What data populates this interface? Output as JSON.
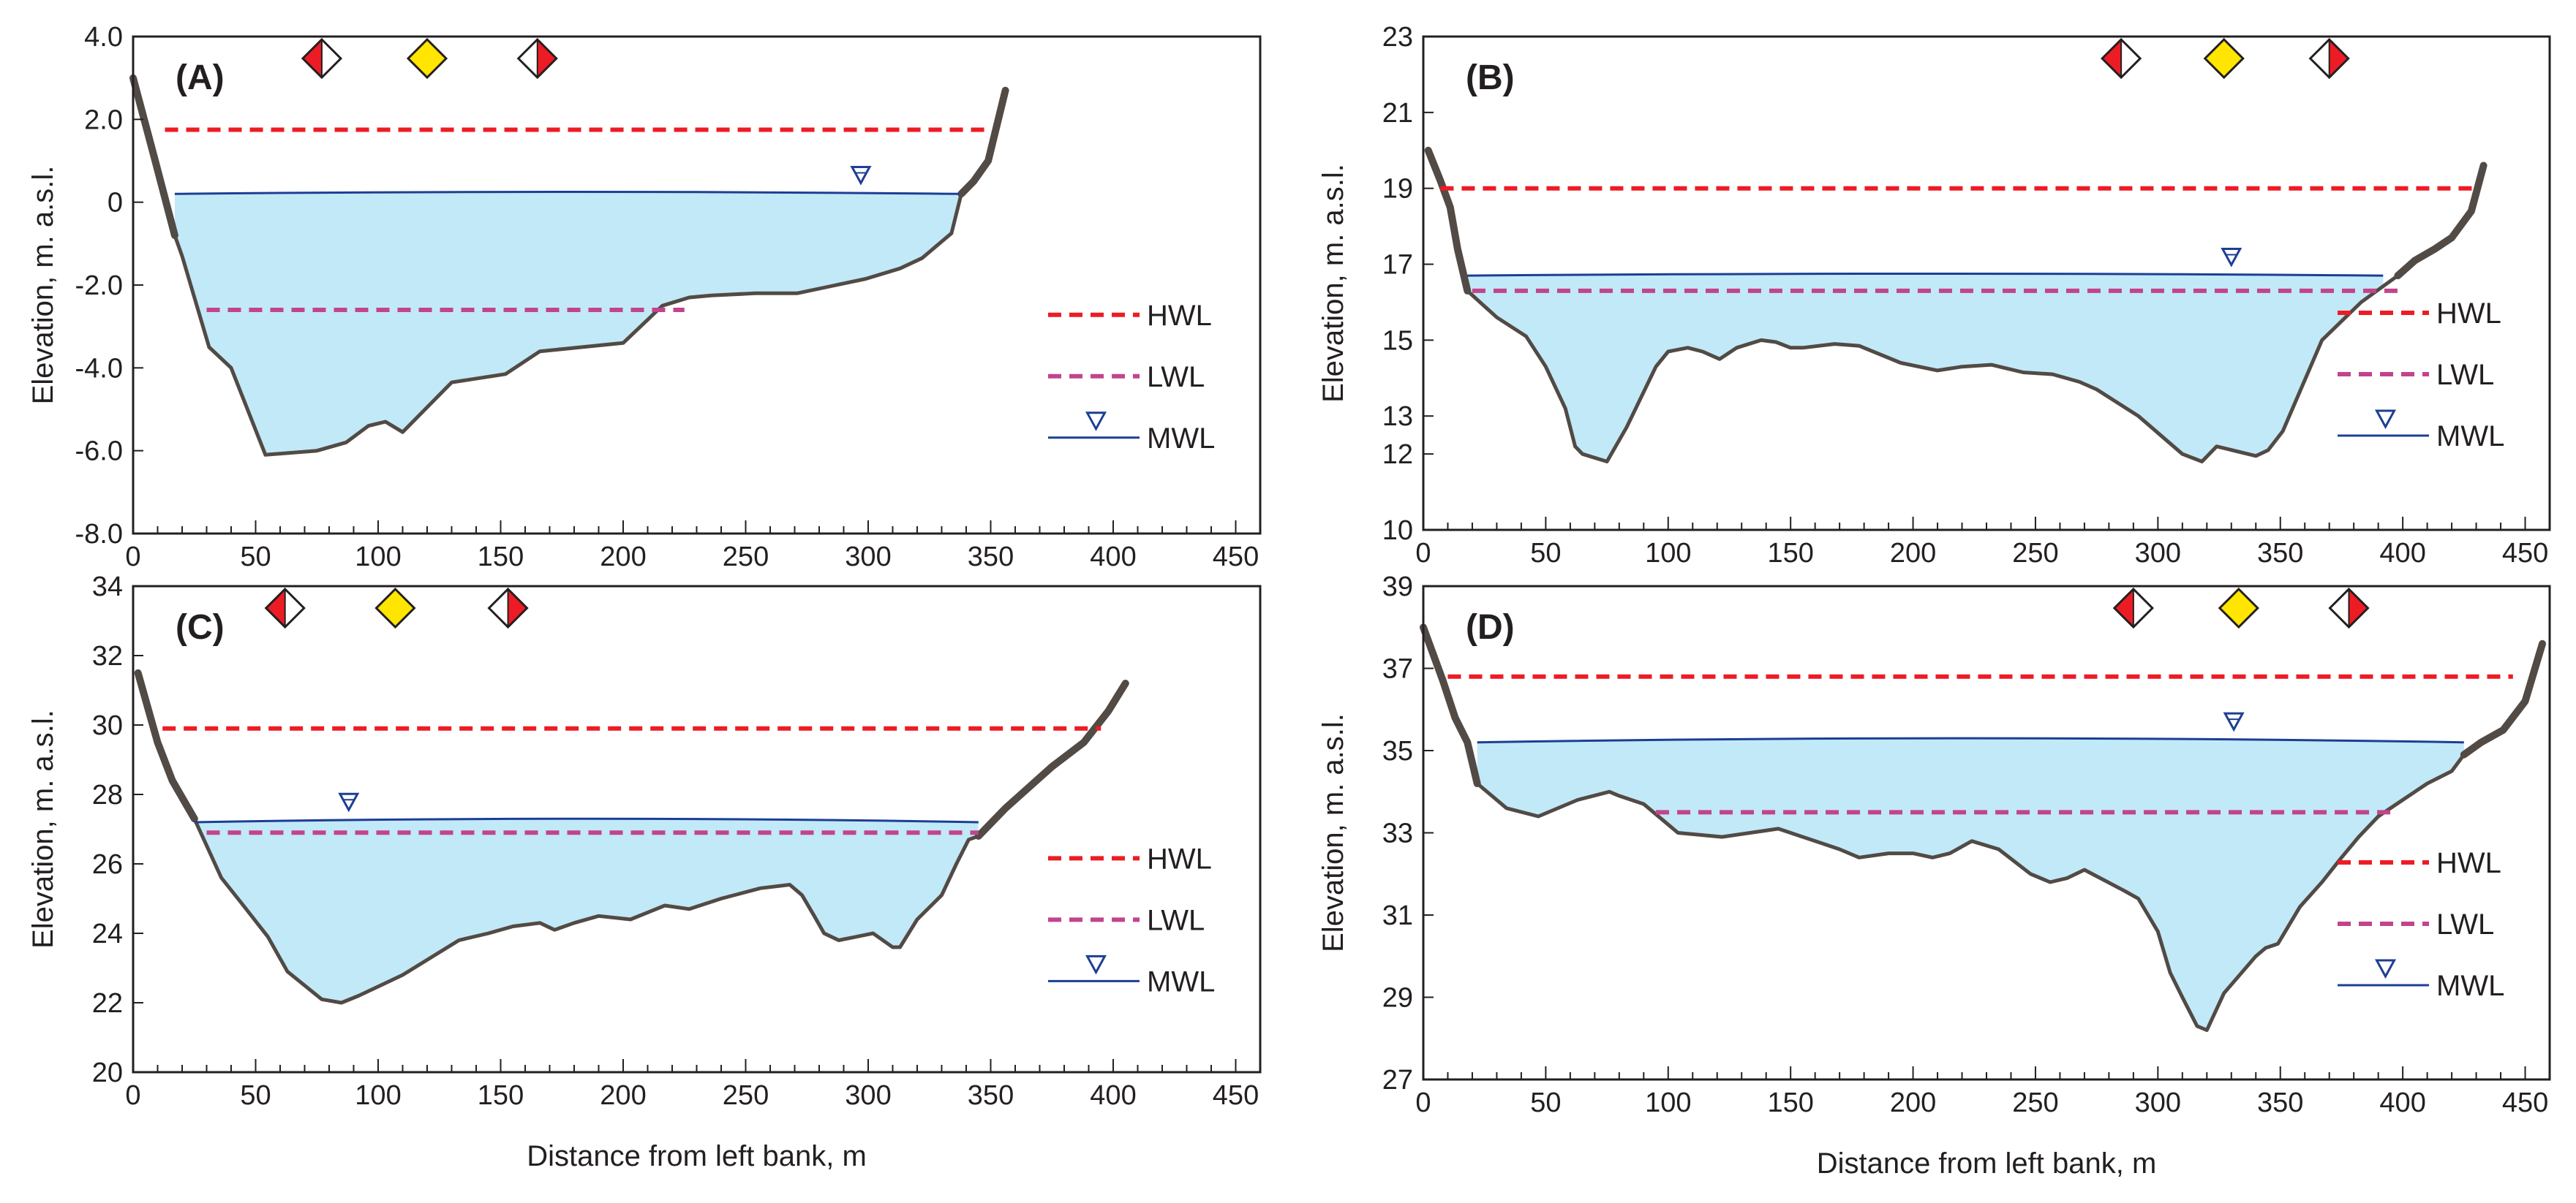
{
  "figure": {
    "colors": {
      "water": "#c2e9f7",
      "bed": "#524a45",
      "hwl": "#ed1c24",
      "lwl": "#c2448c",
      "mwl": "#1c3f94",
      "frame": "#231f20",
      "marker_red": "#ed1c24",
      "marker_yellow": "#ffe500"
    },
    "legend": {
      "hwl": "HWL",
      "lwl": "LWL",
      "mwl": "MWL"
    }
  },
  "chart_data": [
    {
      "type": "area",
      "panel": "(A)",
      "xlabel": "",
      "ylabel": "Elevation, m. a.s.l.",
      "xlim": [
        0,
        460
      ],
      "ylim": [
        -8,
        4
      ],
      "xticks": [
        "0",
        "50",
        "100",
        "150",
        "200",
        "250",
        "300",
        "350",
        "400",
        "450"
      ],
      "yticks": [
        "-8.0",
        "-6.0",
        "-4.0",
        "-2.0",
        "0",
        "2.0",
        "4.0"
      ],
      "legend_position": "right",
      "hwl": {
        "x": [
          13,
          350
        ],
        "y": 1.75
      },
      "lwl": {
        "x": [
          30,
          225
        ],
        "y": -2.6
      },
      "mwl": {
        "x": [
          17,
          337
        ],
        "y": 0.2,
        "y_mid": 0.25,
        "symbol_x": 297
      },
      "bed": {
        "x": [
          0,
          9,
          17,
          20,
          31,
          40,
          44,
          54,
          75,
          87,
          96,
          103,
          110,
          130,
          152,
          166,
          183,
          200,
          216,
          227,
          236,
          254,
          271,
          299,
          313,
          322,
          334,
          338,
          343,
          349,
          356
        ],
        "y": [
          3.0,
          1.0,
          -0.8,
          -1.3,
          -3.5,
          -4.0,
          -4.6,
          -6.1,
          -6.0,
          -5.8,
          -5.4,
          -5.3,
          -5.55,
          -4.35,
          -4.15,
          -3.6,
          -3.5,
          -3.4,
          -2.5,
          -2.3,
          -2.25,
          -2.2,
          -2.2,
          -1.85,
          -1.6,
          -1.35,
          -0.75,
          0.2,
          0.5,
          1.0,
          2.7
        ]
      },
      "bank_left_until": 17,
      "bank_right_from": 337,
      "markers": [
        {
          "x": 77,
          "kind": "left-red"
        },
        {
          "x": 120,
          "kind": "yellow"
        },
        {
          "x": 165,
          "kind": "right-red"
        }
      ]
    },
    {
      "type": "area",
      "panel": "(B)",
      "xlabel": "",
      "ylabel": "Elevation, m. a.s.l.",
      "xlim": [
        0,
        460
      ],
      "ylim": [
        10,
        23
      ],
      "xticks": [
        "0",
        "50",
        "100",
        "150",
        "200",
        "250",
        "300",
        "350",
        "400",
        "450"
      ],
      "yticks": [
        "10",
        "12",
        "13",
        "15",
        "17",
        "19",
        "21",
        "23"
      ],
      "legend_position": "right",
      "hwl": {
        "x": [
          7,
          430
        ],
        "y": 19.0
      },
      "lwl": {
        "x": [
          20,
          400
        ],
        "y": 16.3
      },
      "mwl": {
        "x": [
          18,
          392
        ],
        "y": 16.7,
        "y_mid": 16.75,
        "symbol_x": 330
      },
      "bed": {
        "x": [
          2,
          7,
          11,
          14,
          18,
          30,
          42,
          50,
          58,
          62,
          65,
          75,
          83,
          95,
          100,
          108,
          114,
          121,
          128,
          138,
          144,
          150,
          155,
          168,
          178,
          195,
          210,
          220,
          232,
          245,
          257,
          268,
          275,
          292,
          310,
          318,
          324,
          340,
          345,
          351,
          357,
          367,
          383,
          398,
          405,
          413,
          420,
          428,
          433
        ],
        "y": [
          20.0,
          19.2,
          18.5,
          17.4,
          16.3,
          15.6,
          15.1,
          14.3,
          13.2,
          12.2,
          12.0,
          11.8,
          12.7,
          14.3,
          14.7,
          14.8,
          14.7,
          14.5,
          14.8,
          15.0,
          14.95,
          14.8,
          14.8,
          14.9,
          14.85,
          14.4,
          14.2,
          14.3,
          14.35,
          14.15,
          14.1,
          13.9,
          13.7,
          13.0,
          12.0,
          11.8,
          12.2,
          11.95,
          12.1,
          12.6,
          13.5,
          15.0,
          16.0,
          16.7,
          17.1,
          17.4,
          17.7,
          18.4,
          19.6
        ]
      },
      "bank_left_until": 18,
      "bank_right_from": 392,
      "markers": [
        {
          "x": 285,
          "kind": "left-red"
        },
        {
          "x": 327,
          "kind": "yellow"
        },
        {
          "x": 370,
          "kind": "right-red"
        }
      ]
    },
    {
      "type": "area",
      "panel": "(C)",
      "xlabel": "Distance from left bank, m",
      "ylabel": "Elevation, m. a.s.l.",
      "xlim": [
        0,
        460
      ],
      "ylim": [
        20,
        34
      ],
      "xticks": [
        "0",
        "50",
        "100",
        "150",
        "200",
        "250",
        "300",
        "350",
        "400",
        "450"
      ],
      "yticks": [
        "20",
        "22",
        "24",
        "26",
        "28",
        "30",
        "32",
        "34"
      ],
      "legend_position": "right",
      "hwl": {
        "x": [
          12,
          395
        ],
        "y": 29.9
      },
      "lwl": {
        "x": [
          30,
          345
        ],
        "y": 26.9
      },
      "mwl": {
        "x": [
          25,
          345
        ],
        "y": 27.2,
        "y_mid": 27.3,
        "symbol_x": 88
      },
      "bed": {
        "x": [
          2,
          10,
          16,
          25,
          36,
          45,
          55,
          63,
          77,
          85,
          92,
          110,
          133,
          145,
          155,
          166,
          172,
          180,
          190,
          203,
          217,
          227,
          240,
          256,
          268,
          273,
          278,
          282,
          288,
          295,
          302,
          310,
          313,
          320,
          330,
          336,
          341,
          345,
          356,
          375,
          388,
          398,
          405
        ],
        "y": [
          31.5,
          29.5,
          28.4,
          27.3,
          25.6,
          24.8,
          23.9,
          22.9,
          22.1,
          22.0,
          22.2,
          22.8,
          23.8,
          24.0,
          24.2,
          24.3,
          24.1,
          24.3,
          24.5,
          24.4,
          24.8,
          24.7,
          25.0,
          25.3,
          25.4,
          25.1,
          24.5,
          24.0,
          23.8,
          23.9,
          24.0,
          23.6,
          23.6,
          24.4,
          25.1,
          26.0,
          26.7,
          26.8,
          27.6,
          28.8,
          29.5,
          30.4,
          31.2
        ]
      },
      "bank_left_until": 25,
      "bank_right_from": 345,
      "markers": [
        {
          "x": 62,
          "kind": "left-red"
        },
        {
          "x": 107,
          "kind": "yellow"
        },
        {
          "x": 153,
          "kind": "right-red"
        }
      ]
    },
    {
      "type": "area",
      "panel": "(D)",
      "xlabel": "Distance from left bank, m",
      "ylabel": "Elevation, m. a.s.l.",
      "xlim": [
        0,
        460
      ],
      "ylim": [
        27,
        39
      ],
      "xticks": [
        "0",
        "50",
        "100",
        "150",
        "200",
        "250",
        "300",
        "350",
        "400",
        "450"
      ],
      "yticks": [
        "27",
        "29",
        "31",
        "33",
        "35",
        "37",
        "39"
      ],
      "legend_position": "right",
      "hwl": {
        "x": [
          10,
          445
        ],
        "y": 36.8
      },
      "lwl": {
        "x": [
          95,
          395
        ],
        "y": 33.5
      },
      "mwl": {
        "x": [
          22,
          425
        ],
        "y": 35.2,
        "y_mid": 35.3,
        "symbol_x": 331
      },
      "bed": {
        "x": [
          0,
          8,
          13,
          18,
          22,
          34,
          47,
          63,
          76,
          80,
          90,
          104,
          122,
          145,
          160,
          170,
          178,
          190,
          200,
          208,
          215,
          224,
          235,
          248,
          256,
          263,
          270,
          286,
          292,
          296,
          300,
          305,
          310,
          316,
          320,
          327,
          340,
          344,
          349,
          358,
          367,
          375,
          382,
          390,
          400,
          410,
          420,
          425,
          432,
          441,
          450,
          457
        ],
        "y": [
          38.0,
          36.7,
          35.8,
          35.2,
          34.2,
          33.6,
          33.4,
          33.8,
          34.0,
          33.9,
          33.7,
          33.0,
          32.9,
          33.1,
          32.8,
          32.6,
          32.4,
          32.5,
          32.5,
          32.4,
          32.5,
          32.8,
          32.6,
          32.0,
          31.8,
          31.9,
          32.1,
          31.6,
          31.4,
          31.0,
          30.6,
          29.6,
          29.0,
          28.3,
          28.2,
          29.1,
          30.0,
          30.2,
          30.3,
          31.2,
          31.8,
          32.4,
          32.9,
          33.4,
          33.8,
          34.2,
          34.5,
          34.9,
          35.2,
          35.5,
          36.2,
          37.6
        ]
      },
      "bank_left_until": 22,
      "bank_right_from": 425,
      "markers": [
        {
          "x": 290,
          "kind": "left-red"
        },
        {
          "x": 333,
          "kind": "yellow"
        },
        {
          "x": 378,
          "kind": "right-red"
        }
      ]
    }
  ]
}
